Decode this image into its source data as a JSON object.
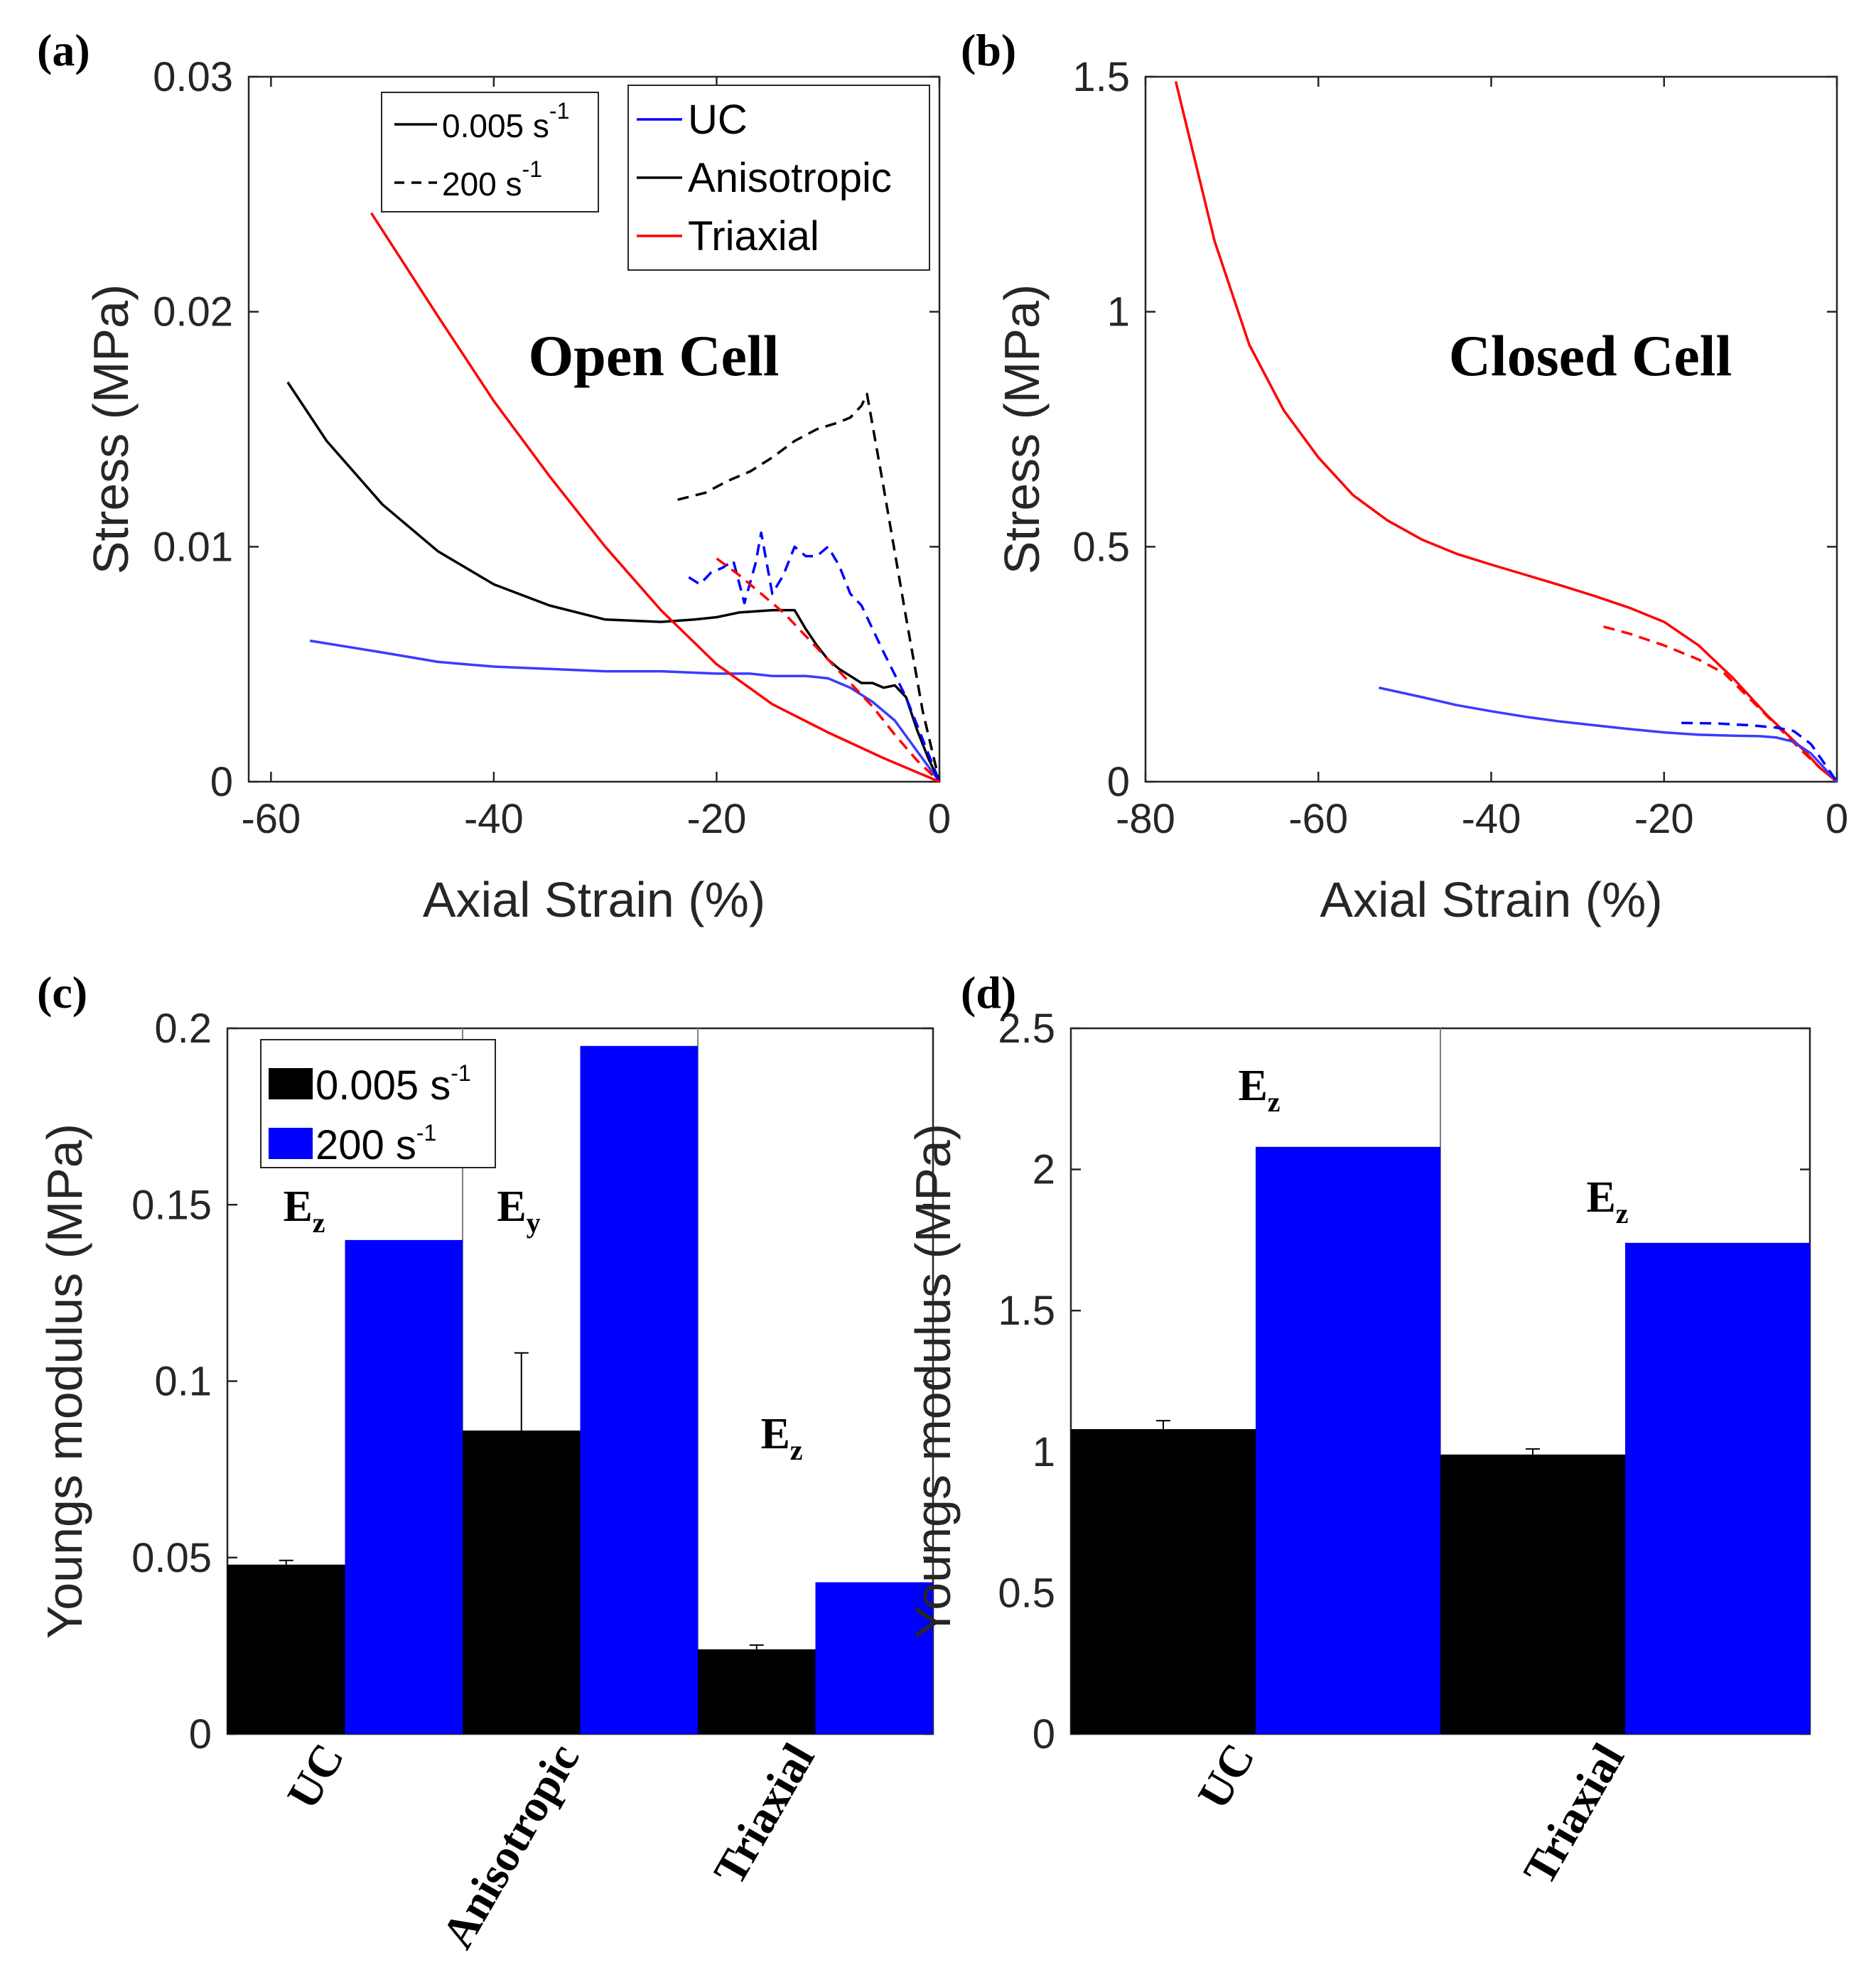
{
  "colors": {
    "black": "#000000",
    "blue": "#0000ff",
    "red": "#ff0000",
    "uc_blue": "#3b3bff",
    "axis": "#262626"
  },
  "chart_data": [
    {
      "id": "a",
      "panel_label": "(a)",
      "type": "line",
      "title": "Open Cell",
      "xlabel": "Axial Strain (%)",
      "ylabel": "Stress (MPa)",
      "xlim": [
        -62,
        0
      ],
      "ylim": [
        0,
        0.03
      ],
      "xticks": [
        -60,
        -40,
        -20,
        0
      ],
      "xtick_labels": [
        "-60",
        "-40",
        "-20",
        "0"
      ],
      "yticks": [
        0,
        0.01,
        0.02,
        0.03
      ],
      "ytick_labels": [
        "0",
        "0.01",
        "0.02",
        "0.03"
      ],
      "legend_rate": [
        {
          "text": "0.005 s",
          "sup": "-1",
          "style": "solid"
        },
        {
          "text": "200 s",
          "sup": "-1",
          "style": "dashed"
        }
      ],
      "legend_model": [
        {
          "text": "UC",
          "color_key": "blue"
        },
        {
          "text": "Anisotropic",
          "color_key": "black"
        },
        {
          "text": "Triaxial",
          "color_key": "red"
        }
      ],
      "series": [
        {
          "name": "UC 0.005 s^-1",
          "color_key": "uc_blue",
          "dash": false,
          "x": [
            -56.5,
            -50,
            -45,
            -40,
            -35,
            -30,
            -25,
            -20,
            -17,
            -15,
            -13,
            -12,
            -10,
            -8,
            -6,
            -4,
            -2,
            0
          ],
          "y": [
            0.006,
            0.0055,
            0.0051,
            0.0049,
            0.0048,
            0.0047,
            0.0047,
            0.0046,
            0.0046,
            0.0045,
            0.0045,
            0.0045,
            0.0044,
            0.004,
            0.0034,
            0.0026,
            0.0013,
            0
          ]
        },
        {
          "name": "Anisotropic 0.005 s^-1",
          "color_key": "black",
          "dash": false,
          "x": [
            -58.5,
            -55,
            -50,
            -45,
            -40,
            -35,
            -30,
            -25,
            -22,
            -20,
            -18,
            -15,
            -13,
            -12,
            -11,
            -10,
            -9,
            -8,
            -7,
            -6,
            -5,
            -4,
            -3,
            -2,
            -1,
            0
          ],
          "y": [
            0.017,
            0.0145,
            0.0118,
            0.0098,
            0.0084,
            0.0075,
            0.0069,
            0.0068,
            0.0069,
            0.007,
            0.0072,
            0.0073,
            0.0073,
            0.0065,
            0.0058,
            0.0052,
            0.0048,
            0.0045,
            0.0042,
            0.0042,
            0.004,
            0.0041,
            0.0036,
            0.0022,
            0.001,
            0
          ]
        },
        {
          "name": "Triaxial 0.005 s^-1",
          "color_key": "red",
          "dash": false,
          "x": [
            -51,
            -45,
            -40,
            -35,
            -30,
            -25,
            -20,
            -15,
            -10,
            -5,
            0
          ],
          "y": [
            0.0242,
            0.0198,
            0.0162,
            0.013,
            0.01,
            0.0073,
            0.005,
            0.0033,
            0.0021,
            0.001,
            0
          ]
        },
        {
          "name": "Anisotropic 200 s^-1",
          "color_key": "black",
          "dash": true,
          "x": [
            -23.5,
            -21,
            -19,
            -17,
            -15,
            -13,
            -11,
            -9,
            -8,
            -7,
            -6.5,
            -5,
            -3,
            -1.5,
            0
          ],
          "y": [
            0.012,
            0.0123,
            0.0128,
            0.0132,
            0.0138,
            0.0145,
            0.015,
            0.0153,
            0.0155,
            0.016,
            0.0165,
            0.0125,
            0.007,
            0.003,
            0
          ]
        },
        {
          "name": "UC 200 s^-1",
          "color_key": "blue",
          "dash": true,
          "x": [
            -22.5,
            -21.5,
            -20.5,
            -19.5,
            -18.5,
            -17.5,
            -16.5,
            -16,
            -15,
            -14,
            -13,
            -12,
            -11,
            -10,
            -9,
            -8,
            -7,
            -5,
            -3,
            -1,
            0
          ],
          "y": [
            0.0087,
            0.0084,
            0.0089,
            0.0091,
            0.0094,
            0.0076,
            0.0093,
            0.0106,
            0.008,
            0.0088,
            0.01,
            0.0096,
            0.0096,
            0.01,
            0.0092,
            0.008,
            0.0075,
            0.0055,
            0.0036,
            0.0012,
            0
          ]
        },
        {
          "name": "Triaxial 200 s^-1",
          "color_key": "red",
          "dash": true,
          "x": [
            -20,
            -18,
            -16,
            -14,
            -12,
            -10,
            -8,
            -6,
            -4,
            -2,
            0
          ],
          "y": [
            0.0095,
            0.0088,
            0.008,
            0.0072,
            0.0062,
            0.0052,
            0.0042,
            0.0032,
            0.002,
            0.0009,
            0
          ]
        }
      ]
    },
    {
      "id": "b",
      "panel_label": "(b)",
      "type": "line",
      "title": "Closed Cell",
      "xlabel": "Axial Strain (%)",
      "ylabel": "Stress (MPa)",
      "xlim": [
        -80,
        0
      ],
      "ylim": [
        0,
        1.5
      ],
      "xticks": [
        -80,
        -60,
        -40,
        -20,
        0
      ],
      "xtick_labels": [
        "-80",
        "-60",
        "-40",
        "-20",
        "0"
      ],
      "yticks": [
        0,
        0.5,
        1,
        1.5
      ],
      "ytick_labels": [
        "0",
        "0.5",
        "1",
        "1.5"
      ],
      "series": [
        {
          "name": "Triaxial 0.005 s^-1",
          "color_key": "red",
          "dash": false,
          "x": [
            -76.5,
            -72,
            -68,
            -64,
            -60,
            -56,
            -52,
            -48,
            -44,
            -40,
            -36,
            -32,
            -28,
            -24,
            -20,
            -16,
            -12,
            -8,
            -4,
            -2,
            0
          ],
          "y": [
            1.49,
            1.15,
            0.93,
            0.79,
            0.69,
            0.61,
            0.556,
            0.515,
            0.485,
            0.462,
            0.44,
            0.418,
            0.395,
            0.37,
            0.34,
            0.29,
            0.22,
            0.14,
            0.07,
            0.03,
            0
          ]
        },
        {
          "name": "Triaxial 200 s^-1",
          "color_key": "red",
          "dash": true,
          "x": [
            -27,
            -24,
            -20,
            -16,
            -13,
            -10,
            -7,
            -4,
            -2,
            0
          ],
          "y": [
            0.33,
            0.315,
            0.29,
            0.26,
            0.23,
            0.175,
            0.12,
            0.065,
            0.03,
            0
          ]
        },
        {
          "name": "UC 0.005 s^-1",
          "color_key": "uc_blue",
          "dash": false,
          "x": [
            -53,
            -48,
            -44,
            -40,
            -36,
            -32,
            -28,
            -24,
            -20,
            -16,
            -12,
            -9,
            -7,
            -5,
            -3,
            -1,
            0
          ],
          "y": [
            0.2,
            0.18,
            0.163,
            0.15,
            0.138,
            0.128,
            0.12,
            0.112,
            0.105,
            0.1,
            0.098,
            0.097,
            0.094,
            0.085,
            0.06,
            0.02,
            0
          ]
        },
        {
          "name": "UC 200 s^-1",
          "color_key": "blue",
          "dash": true,
          "x": [
            -18,
            -14,
            -10,
            -7,
            -5,
            -3,
            -1.5,
            0
          ],
          "y": [
            0.125,
            0.124,
            0.12,
            0.115,
            0.108,
            0.08,
            0.04,
            0
          ]
        }
      ]
    },
    {
      "id": "c",
      "panel_label": "(c)",
      "type": "bar",
      "ylabel": "Youngs modulus (MPa)",
      "ylim": [
        0,
        0.2
      ],
      "yticks": [
        0,
        0.05,
        0.1,
        0.15,
        0.2
      ],
      "ytick_labels": [
        "0",
        "0.05",
        "0.1",
        "0.15",
        "0.2"
      ],
      "categories": [
        "UC",
        "Anisotropic",
        "Triaxial"
      ],
      "modulus_labels": [
        {
          "main": "E",
          "sub": "z"
        },
        {
          "main": "E",
          "sub": "y"
        },
        {
          "main": "E",
          "sub": "z"
        }
      ],
      "series": [
        {
          "name": "0.005 s^-1",
          "color_key": "black",
          "values": [
            0.048,
            0.086,
            0.024
          ],
          "errors": [
            0.0012,
            0.022,
            0.0012
          ]
        },
        {
          "name": "200 s^-1",
          "color_key": "blue",
          "values": [
            0.14,
            0.195,
            0.043
          ],
          "errors": [
            0,
            0,
            0
          ]
        }
      ],
      "legend": [
        {
          "text": "0.005 s",
          "sup": "-1",
          "color_key": "black"
        },
        {
          "text": "200 s",
          "sup": "-1",
          "color_key": "blue"
        }
      ]
    },
    {
      "id": "d",
      "panel_label": "(d)",
      "type": "bar",
      "ylabel": "Youngs modulus (MPa)",
      "ylim": [
        0,
        2.5
      ],
      "yticks": [
        0,
        0.5,
        1,
        1.5,
        2,
        2.5
      ],
      "ytick_labels": [
        "0",
        "0.5",
        "1",
        "1.5",
        "2",
        "2.5"
      ],
      "categories": [
        "UC",
        "Triaxial"
      ],
      "modulus_labels": [
        {
          "main": "E",
          "sub": "z"
        },
        {
          "main": "E",
          "sub": "z"
        }
      ],
      "series": [
        {
          "name": "0.005 s^-1",
          "color_key": "black",
          "values": [
            1.08,
            0.99
          ],
          "errors": [
            0.03,
            0.02
          ]
        },
        {
          "name": "200 s^-1",
          "color_key": "blue",
          "values": [
            2.08,
            1.74
          ],
          "errors": [
            0,
            0
          ]
        }
      ]
    }
  ]
}
